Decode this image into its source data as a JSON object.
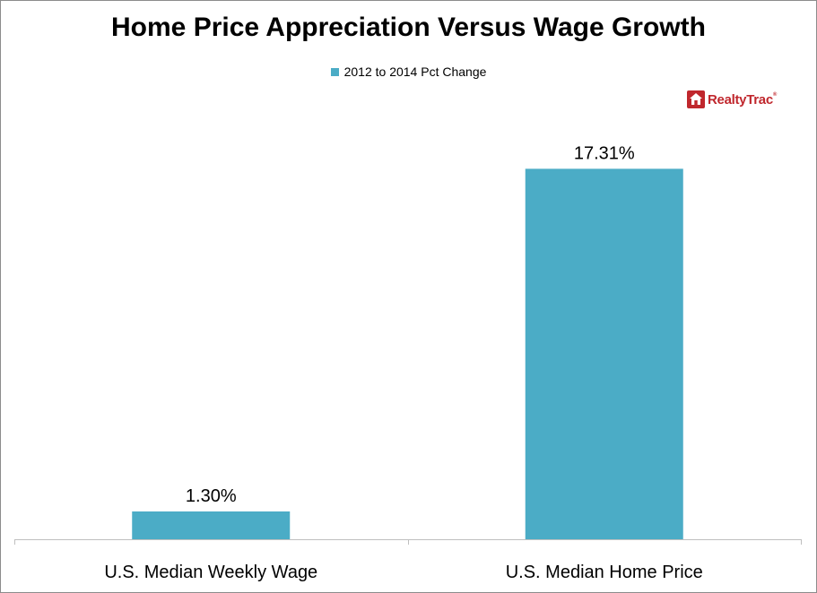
{
  "chart_data": {
    "type": "bar",
    "title": "Home Price Appreciation Versus Wage Growth",
    "categories": [
      "U.S. Median Weekly Wage",
      "U.S. Median Home Price"
    ],
    "series": [
      {
        "name": "2012 to 2014 Pct Change",
        "values": [
          1.3,
          17.31
        ],
        "labels": [
          "1.30%",
          "17.31%"
        ]
      }
    ],
    "xlabel": "",
    "ylabel": "",
    "ylim": [
      0,
      18.5
    ],
    "grid": false,
    "legend_position": "top-center"
  },
  "brand": {
    "name": "RealtyTrac",
    "tm": "®"
  },
  "colors": {
    "bar": "#4bacc6",
    "axis": "#bfbfbf",
    "brand": "#c0272d"
  },
  "icons": {
    "brand_logo": "house-icon"
  }
}
